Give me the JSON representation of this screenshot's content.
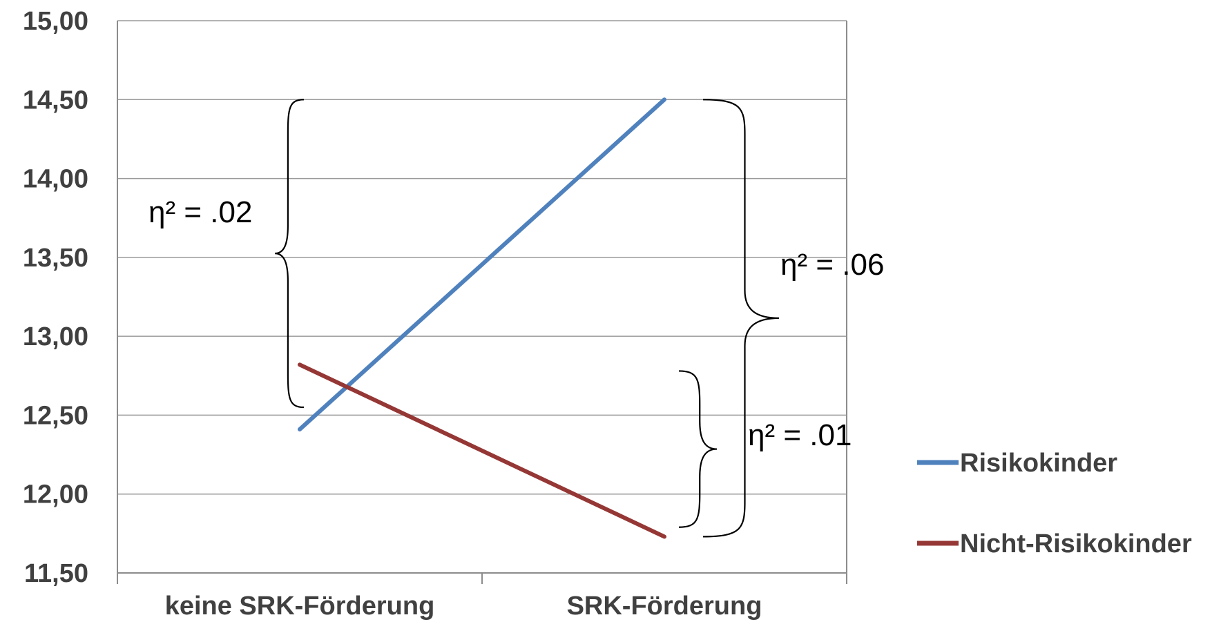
{
  "chart_data": {
    "type": "line",
    "title": "",
    "xlabel": "",
    "ylabel": "",
    "categories": [
      "keine SRK-Förderung",
      "SRK-Förderung"
    ],
    "ylim": [
      11.5,
      15.0
    ],
    "y_ticks": [
      "11,50",
      "12,00",
      "12,50",
      "13,00",
      "13,50",
      "14,00",
      "14,50",
      "15,00"
    ],
    "grid": true,
    "legend_position": "right",
    "series": [
      {
        "name": "Risikokinder",
        "color": "#4f81bd",
        "values": [
          12.41,
          14.5
        ]
      },
      {
        "name": "Nicht-Risikokinder",
        "color": "#953735",
        "values": [
          12.82,
          11.73
        ]
      }
    ],
    "annotations": [
      {
        "text": "η² = .02",
        "category": "keine SRK-Förderung",
        "y_range": [
          12.55,
          14.5
        ]
      },
      {
        "text": "η² = .06",
        "category": "SRK-Förderung",
        "y_range": [
          11.73,
          14.5
        ]
      },
      {
        "text": "η² = .01",
        "category": "SRK-Förderung",
        "y_range": [
          11.79,
          12.78
        ]
      }
    ]
  }
}
